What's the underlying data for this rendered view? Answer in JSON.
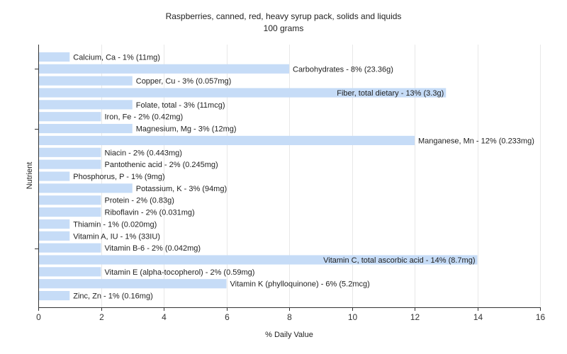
{
  "chart_data": {
    "type": "bar",
    "orientation": "horizontal",
    "title": "Raspberries, canned, red, heavy syrup pack, solids and liquids",
    "subtitle": "100 grams",
    "xlabel": "% Daily Value",
    "ylabel": "Nutrient",
    "xlim": [
      0,
      16
    ],
    "xticks": [
      0,
      2,
      4,
      6,
      8,
      10,
      12,
      14,
      16
    ],
    "grid": true,
    "bar_color": "#c6dcf7",
    "bars": [
      {
        "name": "Calcium, Ca",
        "value": 1,
        "label": "Calcium, Ca - 1% (11mg)"
      },
      {
        "name": "Carbohydrates",
        "value": 8,
        "label": "Carbohydrates - 8% (23.36g)"
      },
      {
        "name": "Copper, Cu",
        "value": 3,
        "label": "Copper, Cu - 3% (0.057mg)"
      },
      {
        "name": "Fiber, total dietary",
        "value": 13,
        "label": "Fiber, total dietary - 13% (3.3g)"
      },
      {
        "name": "Folate, total",
        "value": 3,
        "label": "Folate, total - 3% (11mcg)"
      },
      {
        "name": "Iron, Fe",
        "value": 2,
        "label": "Iron, Fe - 2% (0.42mg)"
      },
      {
        "name": "Magnesium, Mg",
        "value": 3,
        "label": "Magnesium, Mg - 3% (12mg)"
      },
      {
        "name": "Manganese, Mn",
        "value": 12,
        "label": "Manganese, Mn - 12% (0.233mg)"
      },
      {
        "name": "Niacin",
        "value": 2,
        "label": "Niacin - 2% (0.443mg)"
      },
      {
        "name": "Pantothenic acid",
        "value": 2,
        "label": "Pantothenic acid - 2% (0.245mg)"
      },
      {
        "name": "Phosphorus, P",
        "value": 1,
        "label": "Phosphorus, P - 1% (9mg)"
      },
      {
        "name": "Potassium, K",
        "value": 3,
        "label": "Potassium, K - 3% (94mg)"
      },
      {
        "name": "Protein",
        "value": 2,
        "label": "Protein - 2% (0.83g)"
      },
      {
        "name": "Riboflavin",
        "value": 2,
        "label": "Riboflavin - 2% (0.031mg)"
      },
      {
        "name": "Thiamin",
        "value": 1,
        "label": "Thiamin - 1% (0.020mg)"
      },
      {
        "name": "Vitamin A, IU",
        "value": 1,
        "label": "Vitamin A, IU - 1% (33IU)"
      },
      {
        "name": "Vitamin B-6",
        "value": 2,
        "label": "Vitamin B-6 - 2% (0.042mg)"
      },
      {
        "name": "Vitamin C, total ascorbic acid",
        "value": 14,
        "label": "Vitamin C, total ascorbic acid - 14% (8.7mg)"
      },
      {
        "name": "Vitamin E (alpha-tocopherol)",
        "value": 2,
        "label": "Vitamin E (alpha-tocopherol) - 2% (0.59mg)"
      },
      {
        "name": "Vitamin K (phylloquinone)",
        "value": 6,
        "label": "Vitamin K (phylloquinone) - 6% (5.2mcg)"
      },
      {
        "name": "Zinc, Zn",
        "value": 1,
        "label": "Zinc, Zn - 1% (0.16mg)"
      }
    ]
  }
}
